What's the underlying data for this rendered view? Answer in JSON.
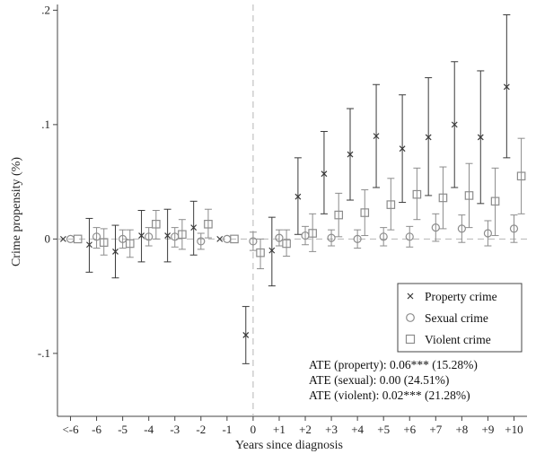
{
  "chart_data": {
    "type": "scatter",
    "title": "",
    "xlabel": "Years since diagnosis",
    "ylabel": "Crime propensity (%)",
    "categories": [
      "<-6",
      "-6",
      "-5",
      "-4",
      "-3",
      "-2",
      "-1",
      "0",
      "+1",
      "+2",
      "+3",
      "+4",
      "+5",
      "+6",
      "+7",
      "+8",
      "+9",
      "+10"
    ],
    "ylim": [
      -0.155,
      0.205
    ],
    "yticks": [
      {
        "value": -0.1,
        "label": "-.1"
      },
      {
        "value": 0,
        "label": "0"
      },
      {
        "value": 0.1,
        "label": ".1"
      },
      {
        "value": 0.2,
        "label": ".2"
      }
    ],
    "reference_lines": {
      "x_category": "0",
      "y_value": 0
    },
    "grid": false,
    "legend_position": "bottom-right",
    "series": [
      {
        "name": "Property crime",
        "marker": "x",
        "color": "#3a3a3a",
        "values": [
          0.0,
          -0.005,
          -0.011,
          0.003,
          0.003,
          0.01,
          0.0,
          -0.084,
          -0.01,
          0.037,
          0.057,
          0.074,
          0.09,
          0.079,
          0.089,
          0.1,
          0.089,
          0.133
        ],
        "ci_low": [
          0.0,
          -0.029,
          -0.034,
          -0.02,
          -0.02,
          -0.014,
          0.0,
          -0.109,
          -0.041,
          0.004,
          0.022,
          0.034,
          0.045,
          0.032,
          0.038,
          0.045,
          0.031,
          0.071
        ],
        "ci_high": [
          0.0,
          0.018,
          0.012,
          0.025,
          0.026,
          0.033,
          0.0,
          -0.059,
          0.019,
          0.071,
          0.094,
          0.114,
          0.135,
          0.126,
          0.141,
          0.155,
          0.147,
          0.196
        ]
      },
      {
        "name": "Sexual crime",
        "marker": "circle",
        "color": "#8c8c8c",
        "values": [
          0.0,
          0.002,
          0.0,
          0.002,
          0.002,
          -0.002,
          0.0,
          -0.002,
          0.001,
          0.003,
          0.001,
          0.0,
          0.002,
          0.002,
          0.01,
          0.009,
          0.005,
          0.009
        ],
        "ci_low": [
          0.0,
          -0.008,
          -0.008,
          -0.006,
          -0.007,
          -0.009,
          0.0,
          -0.01,
          -0.006,
          -0.005,
          -0.006,
          -0.008,
          -0.006,
          -0.007,
          -0.002,
          -0.003,
          -0.006,
          -0.003
        ],
        "ci_high": [
          0.0,
          0.01,
          0.008,
          0.01,
          0.01,
          0.005,
          0.0,
          0.006,
          0.008,
          0.011,
          0.008,
          0.008,
          0.01,
          0.011,
          0.022,
          0.021,
          0.016,
          0.021
        ]
      },
      {
        "name": "Violent crime",
        "marker": "square",
        "color": "#8c8c8c",
        "values": [
          0.0,
          -0.003,
          -0.004,
          0.013,
          0.004,
          0.013,
          0.0,
          -0.012,
          -0.004,
          0.005,
          0.021,
          0.023,
          0.03,
          0.039,
          0.036,
          0.038,
          0.033,
          0.055
        ],
        "ci_low": [
          0.0,
          -0.014,
          -0.016,
          0.0,
          -0.009,
          0.001,
          0.0,
          -0.026,
          -0.015,
          -0.011,
          0.002,
          0.003,
          0.008,
          0.017,
          0.009,
          0.01,
          0.003,
          0.022
        ],
        "ci_high": [
          0.0,
          0.009,
          0.008,
          0.025,
          0.017,
          0.026,
          0.0,
          0.0,
          0.008,
          0.022,
          0.04,
          0.043,
          0.053,
          0.062,
          0.063,
          0.066,
          0.062,
          0.088
        ]
      }
    ],
    "annotations": [
      "ATE (property): 0.06*** (15.28%)",
      "ATE (sexual): 0.00 (24.51%)",
      "ATE (violent): 0.02*** (21.28%)"
    ]
  }
}
